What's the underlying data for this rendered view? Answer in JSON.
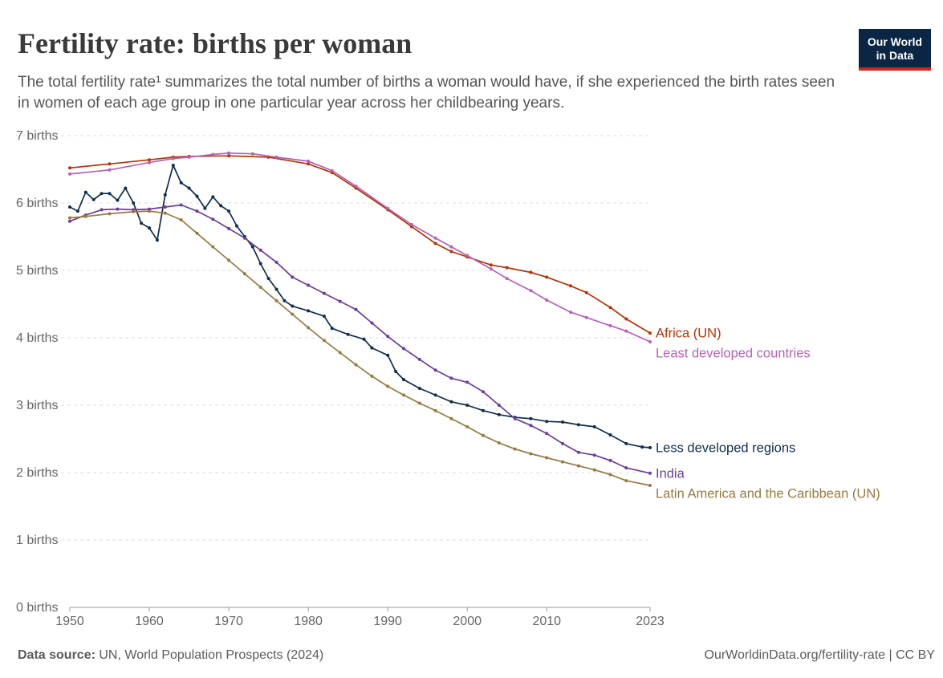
{
  "header": {
    "title": "Fertility rate: births per woman",
    "subtitle": "The total fertility rate¹ summarizes the total number of births a woman would have, if she experienced the birth rates seen in women of each age group in one particular year across her childbearing years."
  },
  "logo": {
    "line1": "Our World",
    "line2": "in Data"
  },
  "footer": {
    "source_label": "Data source:",
    "source_text": "UN, World Population Prospects (2024)",
    "url": "OurWorldinData.org/fertility-rate | CC BY"
  },
  "chart_data": {
    "type": "line",
    "title": "Fertility rate: births per woman",
    "xlim": [
      1950,
      2023
    ],
    "ylim": [
      0,
      7
    ],
    "x_ticks": [
      1950,
      1960,
      1970,
      1980,
      1990,
      2000,
      2010,
      2023
    ],
    "y_ticks": [
      0,
      1,
      2,
      3,
      4,
      5,
      6,
      7
    ],
    "y_tick_labels": [
      "0 births",
      "1 births",
      "2 births",
      "3 births",
      "4 births",
      "5 births",
      "6 births",
      "7 births"
    ],
    "grid": "horizontal dashed",
    "legend": "inline labels at right end of lines",
    "series": [
      {
        "name": "Africa (UN)",
        "color": "#b13507",
        "points": [
          [
            1950,
            6.52
          ],
          [
            1955,
            6.58
          ],
          [
            1960,
            6.64
          ],
          [
            1963,
            6.68
          ],
          [
            1965,
            6.69
          ],
          [
            1970,
            6.7
          ],
          [
            1975,
            6.68
          ],
          [
            1980,
            6.58
          ],
          [
            1983,
            6.45
          ],
          [
            1986,
            6.22
          ],
          [
            1990,
            5.9
          ],
          [
            1993,
            5.65
          ],
          [
            1996,
            5.4
          ],
          [
            1998,
            5.28
          ],
          [
            2000,
            5.2
          ],
          [
            2003,
            5.08
          ],
          [
            2005,
            5.04
          ],
          [
            2008,
            4.97
          ],
          [
            2010,
            4.9
          ],
          [
            2013,
            4.77
          ],
          [
            2015,
            4.67
          ],
          [
            2018,
            4.45
          ],
          [
            2020,
            4.28
          ],
          [
            2023,
            4.07
          ]
        ]
      },
      {
        "name": "Least developed countries",
        "color": "#b561b8",
        "points": [
          [
            1950,
            6.43
          ],
          [
            1955,
            6.49
          ],
          [
            1960,
            6.6
          ],
          [
            1963,
            6.66
          ],
          [
            1965,
            6.68
          ],
          [
            1968,
            6.72
          ],
          [
            1970,
            6.74
          ],
          [
            1973,
            6.73
          ],
          [
            1976,
            6.68
          ],
          [
            1980,
            6.62
          ],
          [
            1983,
            6.48
          ],
          [
            1986,
            6.25
          ],
          [
            1990,
            5.92
          ],
          [
            1993,
            5.68
          ],
          [
            1996,
            5.48
          ],
          [
            1998,
            5.35
          ],
          [
            2000,
            5.22
          ],
          [
            2003,
            5.02
          ],
          [
            2005,
            4.88
          ],
          [
            2008,
            4.7
          ],
          [
            2010,
            4.56
          ],
          [
            2013,
            4.38
          ],
          [
            2015,
            4.3
          ],
          [
            2018,
            4.18
          ],
          [
            2020,
            4.1
          ],
          [
            2023,
            3.94
          ]
        ]
      },
      {
        "name": "Less developed regions",
        "color": "#0f2e4e",
        "points": [
          [
            1950,
            5.94
          ],
          [
            1951,
            5.88
          ],
          [
            1952,
            6.16
          ],
          [
            1953,
            6.05
          ],
          [
            1954,
            6.14
          ],
          [
            1955,
            6.14
          ],
          [
            1956,
            6.04
          ],
          [
            1957,
            6.22
          ],
          [
            1958,
            6.0
          ],
          [
            1959,
            5.7
          ],
          [
            1960,
            5.63
          ],
          [
            1961,
            5.45
          ],
          [
            1962,
            6.12
          ],
          [
            1963,
            6.56
          ],
          [
            1964,
            6.3
          ],
          [
            1965,
            6.22
          ],
          [
            1966,
            6.1
          ],
          [
            1967,
            5.92
          ],
          [
            1968,
            6.09
          ],
          [
            1969,
            5.96
          ],
          [
            1970,
            5.88
          ],
          [
            1971,
            5.66
          ],
          [
            1972,
            5.5
          ],
          [
            1973,
            5.35
          ],
          [
            1974,
            5.1
          ],
          [
            1975,
            4.88
          ],
          [
            1976,
            4.72
          ],
          [
            1977,
            4.55
          ],
          [
            1978,
            4.47
          ],
          [
            1980,
            4.4
          ],
          [
            1982,
            4.32
          ],
          [
            1983,
            4.14
          ],
          [
            1985,
            4.05
          ],
          [
            1987,
            3.98
          ],
          [
            1988,
            3.85
          ],
          [
            1990,
            3.74
          ],
          [
            1991,
            3.5
          ],
          [
            1992,
            3.38
          ],
          [
            1994,
            3.25
          ],
          [
            1996,
            3.15
          ],
          [
            1998,
            3.05
          ],
          [
            2000,
            3.0
          ],
          [
            2002,
            2.92
          ],
          [
            2004,
            2.86
          ],
          [
            2006,
            2.82
          ],
          [
            2008,
            2.8
          ],
          [
            2010,
            2.76
          ],
          [
            2012,
            2.75
          ],
          [
            2014,
            2.71
          ],
          [
            2016,
            2.68
          ],
          [
            2018,
            2.56
          ],
          [
            2020,
            2.43
          ],
          [
            2022,
            2.38
          ],
          [
            2023,
            2.37
          ]
        ]
      },
      {
        "name": "India",
        "color": "#6b3d9a",
        "points": [
          [
            1950,
            5.73
          ],
          [
            1952,
            5.82
          ],
          [
            1954,
            5.9
          ],
          [
            1956,
            5.91
          ],
          [
            1958,
            5.9
          ],
          [
            1960,
            5.91
          ],
          [
            1962,
            5.94
          ],
          [
            1964,
            5.97
          ],
          [
            1966,
            5.88
          ],
          [
            1968,
            5.76
          ],
          [
            1970,
            5.62
          ],
          [
            1972,
            5.48
          ],
          [
            1974,
            5.3
          ],
          [
            1976,
            5.12
          ],
          [
            1978,
            4.9
          ],
          [
            1980,
            4.78
          ],
          [
            1982,
            4.66
          ],
          [
            1984,
            4.54
          ],
          [
            1986,
            4.42
          ],
          [
            1988,
            4.22
          ],
          [
            1990,
            4.02
          ],
          [
            1992,
            3.84
          ],
          [
            1994,
            3.68
          ],
          [
            1996,
            3.52
          ],
          [
            1998,
            3.4
          ],
          [
            2000,
            3.34
          ],
          [
            2002,
            3.2
          ],
          [
            2004,
            3.0
          ],
          [
            2006,
            2.8
          ],
          [
            2008,
            2.7
          ],
          [
            2010,
            2.58
          ],
          [
            2012,
            2.43
          ],
          [
            2014,
            2.3
          ],
          [
            2016,
            2.26
          ],
          [
            2018,
            2.18
          ],
          [
            2020,
            2.07
          ],
          [
            2023,
            1.99
          ]
        ]
      },
      {
        "name": "Latin America and the Caribbean (UN)",
        "color": "#977a41",
        "points": [
          [
            1950,
            5.78
          ],
          [
            1952,
            5.8
          ],
          [
            1955,
            5.84
          ],
          [
            1958,
            5.87
          ],
          [
            1960,
            5.88
          ],
          [
            1962,
            5.85
          ],
          [
            1964,
            5.75
          ],
          [
            1966,
            5.55
          ],
          [
            1968,
            5.35
          ],
          [
            1970,
            5.15
          ],
          [
            1972,
            4.95
          ],
          [
            1974,
            4.75
          ],
          [
            1976,
            4.55
          ],
          [
            1978,
            4.35
          ],
          [
            1980,
            4.15
          ],
          [
            1982,
            3.96
          ],
          [
            1984,
            3.78
          ],
          [
            1986,
            3.6
          ],
          [
            1988,
            3.43
          ],
          [
            1990,
            3.28
          ],
          [
            1992,
            3.15
          ],
          [
            1994,
            3.03
          ],
          [
            1996,
            2.92
          ],
          [
            1998,
            2.8
          ],
          [
            2000,
            2.68
          ],
          [
            2002,
            2.55
          ],
          [
            2004,
            2.44
          ],
          [
            2006,
            2.35
          ],
          [
            2008,
            2.28
          ],
          [
            2010,
            2.22
          ],
          [
            2012,
            2.16
          ],
          [
            2014,
            2.1
          ],
          [
            2016,
            2.04
          ],
          [
            2018,
            1.97
          ],
          [
            2020,
            1.88
          ],
          [
            2023,
            1.81
          ]
        ]
      }
    ]
  }
}
